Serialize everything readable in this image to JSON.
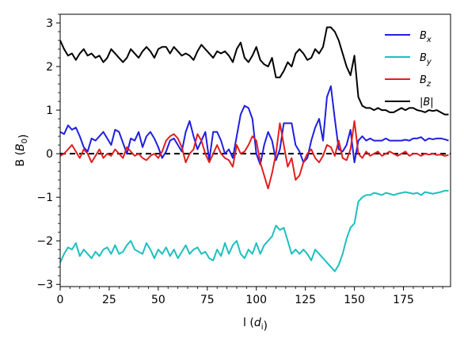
{
  "chart_data": {
    "type": "line",
    "xlabel": "l (d_i)",
    "ylabel": "B (B_0)",
    "xlim": [
      0,
      199
    ],
    "ylim": [
      -3.05,
      3.2
    ],
    "x_ticks": [
      "0",
      "25",
      "50",
      "75",
      "100",
      "125",
      "150",
      "175"
    ],
    "y_ticks": [
      "−3",
      "−2",
      "−1",
      "0",
      "1",
      "2",
      "3"
    ],
    "legend_position": "top-right",
    "reference_line": {
      "y": 0,
      "style": "dashed",
      "color": "#000000"
    },
    "series": [
      {
        "name": "B_x",
        "color": "#1f1fe0",
        "x": [
          0,
          2,
          4,
          6,
          8,
          10,
          12,
          14,
          16,
          18,
          20,
          22,
          24,
          26,
          28,
          30,
          32,
          34,
          36,
          38,
          40,
          42,
          44,
          46,
          48,
          50,
          52,
          54,
          56,
          58,
          60,
          62,
          64,
          66,
          68,
          70,
          72,
          74,
          76,
          78,
          80,
          82,
          84,
          86,
          88,
          90,
          92,
          94,
          96,
          98,
          100,
          102,
          104,
          106,
          108,
          110,
          112,
          114,
          116,
          118,
          120,
          122,
          124,
          126,
          128,
          130,
          132,
          134,
          136,
          138,
          140,
          142,
          144,
          146,
          148,
          150,
          152,
          154,
          156,
          158,
          160,
          162,
          164,
          166,
          168,
          170,
          172,
          174,
          176,
          178,
          180,
          182,
          184,
          186,
          188,
          190,
          192,
          194,
          196,
          198
        ],
        "y": [
          0.5,
          0.45,
          0.65,
          0.55,
          0.6,
          0.4,
          0.15,
          0.05,
          0.35,
          0.3,
          0.4,
          0.5,
          0.35,
          0.2,
          0.55,
          0.5,
          0.25,
          0.0,
          0.35,
          0.3,
          0.5,
          0.15,
          0.4,
          0.5,
          0.35,
          0.15,
          -0.1,
          0.05,
          0.3,
          0.35,
          0.2,
          0.05,
          0.5,
          0.75,
          0.4,
          0.1,
          0.3,
          0.5,
          -0.15,
          0.5,
          0.5,
          0.3,
          0.0,
          0.1,
          -0.1,
          0.4,
          0.9,
          1.1,
          1.05,
          0.8,
          0.0,
          -0.25,
          0.2,
          0.5,
          0.3,
          -0.15,
          0.1,
          0.7,
          0.7,
          0.7,
          0.2,
          0.05,
          -0.2,
          -0.1,
          0.3,
          0.6,
          0.8,
          0.3,
          1.3,
          1.55,
          0.8,
          0.1,
          0.05,
          0.2,
          0.55,
          -0.2,
          0.3,
          0.4,
          0.3,
          0.35,
          0.3,
          0.3,
          0.3,
          0.35,
          0.3,
          0.3,
          0.3,
          0.3,
          0.32,
          0.3,
          0.35,
          0.35,
          0.38,
          0.3,
          0.35,
          0.33,
          0.35,
          0.35,
          0.33,
          0.3
        ]
      },
      {
        "name": "B_y",
        "color": "#1fbfbf",
        "x": [
          0,
          2,
          4,
          6,
          8,
          10,
          12,
          14,
          16,
          18,
          20,
          22,
          24,
          26,
          28,
          30,
          32,
          34,
          36,
          38,
          40,
          42,
          44,
          46,
          48,
          50,
          52,
          54,
          56,
          58,
          60,
          62,
          64,
          66,
          68,
          70,
          72,
          74,
          76,
          78,
          80,
          82,
          84,
          86,
          88,
          90,
          92,
          94,
          96,
          98,
          100,
          102,
          104,
          106,
          108,
          110,
          112,
          114,
          116,
          118,
          120,
          122,
          124,
          126,
          128,
          130,
          132,
          134,
          136,
          138,
          140,
          142,
          144,
          146,
          148,
          150,
          152,
          154,
          156,
          158,
          160,
          162,
          164,
          166,
          168,
          170,
          172,
          174,
          176,
          178,
          180,
          182,
          184,
          186,
          188,
          190,
          192,
          194,
          196,
          198
        ],
        "y": [
          -2.5,
          -2.3,
          -2.15,
          -2.2,
          -2.05,
          -2.35,
          -2.2,
          -2.3,
          -2.4,
          -2.25,
          -2.35,
          -2.2,
          -2.15,
          -2.3,
          -2.1,
          -2.3,
          -2.25,
          -2.1,
          -2.0,
          -2.2,
          -2.25,
          -2.3,
          -2.05,
          -2.2,
          -2.4,
          -2.2,
          -2.3,
          -2.15,
          -2.35,
          -2.2,
          -2.4,
          -2.25,
          -2.1,
          -2.3,
          -2.2,
          -2.15,
          -2.3,
          -2.25,
          -2.4,
          -2.45,
          -2.2,
          -2.35,
          -2.05,
          -2.3,
          -2.1,
          -2.0,
          -2.3,
          -2.4,
          -2.2,
          -2.3,
          -2.05,
          -2.3,
          -2.1,
          -2.0,
          -1.9,
          -1.65,
          -1.75,
          -1.7,
          -2.0,
          -2.3,
          -2.2,
          -2.3,
          -2.2,
          -2.3,
          -2.45,
          -2.2,
          -2.3,
          -2.4,
          -2.5,
          -2.6,
          -2.7,
          -2.55,
          -2.3,
          -1.95,
          -1.7,
          -1.6,
          -1.1,
          -1.0,
          -0.95,
          -0.95,
          -0.9,
          -0.92,
          -0.95,
          -0.9,
          -0.92,
          -0.95,
          -0.92,
          -0.9,
          -0.88,
          -0.9,
          -0.92,
          -0.9,
          -0.95,
          -0.88,
          -0.9,
          -0.92,
          -0.9,
          -0.88,
          -0.85,
          -0.85
        ]
      },
      {
        "name": "B_z",
        "color": "#e01f1f",
        "x": [
          0,
          2,
          4,
          6,
          8,
          10,
          12,
          14,
          16,
          18,
          20,
          22,
          24,
          26,
          28,
          30,
          32,
          34,
          36,
          38,
          40,
          42,
          44,
          46,
          48,
          50,
          52,
          54,
          56,
          58,
          60,
          62,
          64,
          66,
          68,
          70,
          72,
          74,
          76,
          78,
          80,
          82,
          84,
          86,
          88,
          90,
          92,
          94,
          96,
          98,
          100,
          102,
          104,
          106,
          108,
          110,
          112,
          114,
          116,
          118,
          120,
          122,
          124,
          126,
          128,
          130,
          132,
          134,
          136,
          138,
          140,
          142,
          144,
          146,
          148,
          150,
          152,
          154,
          156,
          158,
          160,
          162,
          164,
          166,
          168,
          170,
          172,
          174,
          176,
          178,
          180,
          182,
          184,
          186,
          188,
          190,
          192,
          194,
          196,
          198
        ],
        "y": [
          -0.05,
          0.0,
          0.1,
          0.2,
          0.05,
          -0.1,
          0.1,
          0.0,
          -0.2,
          -0.05,
          0.1,
          -0.1,
          0.0,
          -0.05,
          0.1,
          0.0,
          -0.1,
          0.15,
          0.05,
          -0.05,
          0.0,
          -0.1,
          -0.15,
          -0.05,
          0.0,
          -0.1,
          0.05,
          0.3,
          0.4,
          0.45,
          0.35,
          0.15,
          -0.2,
          0.0,
          0.1,
          0.45,
          0.3,
          0.0,
          -0.2,
          0.0,
          0.2,
          0.0,
          -0.1,
          -0.15,
          -0.3,
          0.2,
          0.0,
          0.05,
          0.2,
          0.4,
          0.3,
          -0.2,
          -0.5,
          -0.8,
          -0.45,
          0.0,
          0.7,
          0.2,
          -0.3,
          -0.1,
          -0.6,
          -0.5,
          -0.2,
          0.0,
          0.1,
          -0.1,
          -0.2,
          -0.05,
          0.2,
          0.15,
          -0.05,
          0.3,
          -0.1,
          -0.15,
          0.1,
          0.75,
          0.0,
          -0.1,
          0.05,
          -0.05,
          0.0,
          0.05,
          -0.05,
          0.0,
          0.05,
          0.0,
          -0.05,
          0.0,
          0.05,
          -0.05,
          0.0,
          0.0,
          -0.05,
          0.0,
          -0.02,
          0.0,
          -0.03,
          -0.02,
          -0.05,
          -0.03
        ]
      },
      {
        "name": "|B|",
        "color": "#000000",
        "x": [
          0,
          2,
          4,
          6,
          8,
          10,
          12,
          14,
          16,
          18,
          20,
          22,
          24,
          26,
          28,
          30,
          32,
          34,
          36,
          38,
          40,
          42,
          44,
          46,
          48,
          50,
          52,
          54,
          56,
          58,
          60,
          62,
          64,
          66,
          68,
          70,
          72,
          74,
          76,
          78,
          80,
          82,
          84,
          86,
          88,
          90,
          92,
          94,
          96,
          98,
          100,
          102,
          104,
          106,
          108,
          110,
          112,
          114,
          116,
          118,
          120,
          122,
          124,
          126,
          128,
          130,
          132,
          134,
          136,
          138,
          140,
          142,
          144,
          146,
          148,
          150,
          152,
          154,
          156,
          158,
          160,
          162,
          164,
          166,
          168,
          170,
          172,
          174,
          176,
          178,
          180,
          182,
          184,
          186,
          188,
          190,
          192,
          194,
          196,
          198
        ],
        "y": [
          2.6,
          2.4,
          2.25,
          2.3,
          2.15,
          2.3,
          2.4,
          2.25,
          2.3,
          2.2,
          2.25,
          2.1,
          2.2,
          2.4,
          2.3,
          2.2,
          2.1,
          2.2,
          2.4,
          2.3,
          2.2,
          2.35,
          2.45,
          2.35,
          2.2,
          2.4,
          2.45,
          2.45,
          2.3,
          2.45,
          2.35,
          2.25,
          2.3,
          2.25,
          2.15,
          2.35,
          2.5,
          2.4,
          2.3,
          2.2,
          2.35,
          2.3,
          2.35,
          2.25,
          2.1,
          2.4,
          2.55,
          2.2,
          2.1,
          2.25,
          2.45,
          2.15,
          2.05,
          2.0,
          2.2,
          1.75,
          1.75,
          1.9,
          2.1,
          2.0,
          2.3,
          2.4,
          2.3,
          2.15,
          2.2,
          2.4,
          2.3,
          2.45,
          2.9,
          2.9,
          2.8,
          2.6,
          2.3,
          2.0,
          1.8,
          2.25,
          1.3,
          1.1,
          1.05,
          1.05,
          1.0,
          1.05,
          1.0,
          1.0,
          0.95,
          0.95,
          1.0,
          1.05,
          1.0,
          1.05,
          1.05,
          1.0,
          0.98,
          0.95,
          1.0,
          0.98,
          1.0,
          0.95,
          0.9,
          0.9
        ]
      }
    ]
  }
}
